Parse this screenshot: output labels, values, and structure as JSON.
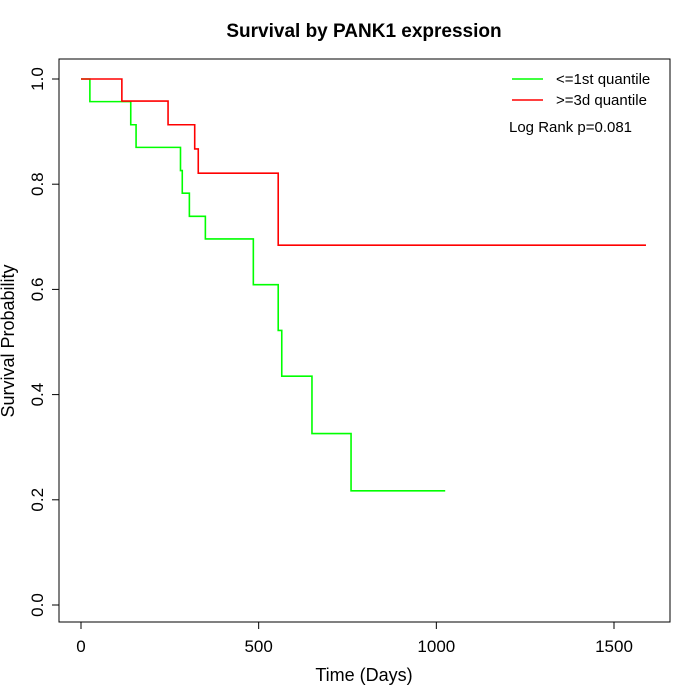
{
  "chart_data": {
    "type": "line",
    "title": "Survival by PANK1 expression",
    "xlabel": "Time (Days)",
    "ylabel": "Survival Probability",
    "xlim": [
      0,
      1600
    ],
    "ylim": [
      0,
      1.0
    ],
    "x_ticks": [
      "0",
      "500",
      "1000",
      "1500"
    ],
    "y_ticks": [
      "0.0",
      "0.2",
      "0.4",
      "0.6",
      "0.8",
      "1.0"
    ],
    "grid": false,
    "legend_position": "top-right",
    "annotation": "Log Rank p=0.081",
    "series": [
      {
        "name": "<=1st quantile",
        "color": "#00ff00",
        "step": true,
        "x": [
          0,
          25,
          140,
          155,
          280,
          285,
          305,
          350,
          485,
          555,
          565,
          650,
          760,
          1025
        ],
        "y": [
          1.0,
          0.957,
          0.913,
          0.87,
          0.826,
          0.783,
          0.739,
          0.696,
          0.609,
          0.522,
          0.435,
          0.326,
          0.217,
          0.217
        ]
      },
      {
        "name": ">=3d quantile",
        "color": "#ff0000",
        "step": true,
        "x": [
          0,
          115,
          245,
          320,
          330,
          555,
          1590
        ],
        "y": [
          1.0,
          0.958,
          0.913,
          0.867,
          0.821,
          0.684,
          0.684
        ]
      }
    ]
  }
}
